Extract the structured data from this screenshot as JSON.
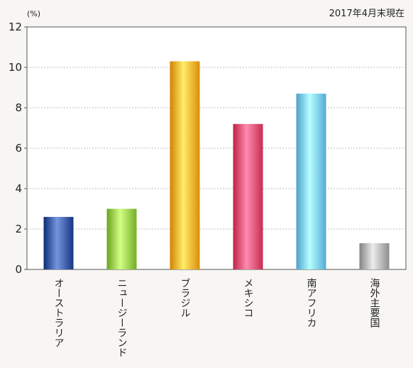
{
  "chart_data": {
    "type": "bar",
    "categories": [
      "オーストラリア",
      "ニュージーランド",
      "ブラジル",
      "メキシコ",
      "南アフリカ",
      "海外主要国"
    ],
    "values": [
      2.6,
      3.0,
      10.3,
      7.2,
      8.7,
      1.3
    ],
    "colors": [
      "#2f4f9a",
      "#8cc63f",
      "#f5a623",
      "#e0456a",
      "#6ec3ee",
      "#a6a6a6"
    ],
    "yunit": "(%)",
    "note": "2017年4月末現在",
    "ylim": [
      0,
      12
    ],
    "yticks": [
      0,
      2,
      4,
      6,
      8,
      10,
      12
    ],
    "grid": true,
    "legend": "none"
  }
}
